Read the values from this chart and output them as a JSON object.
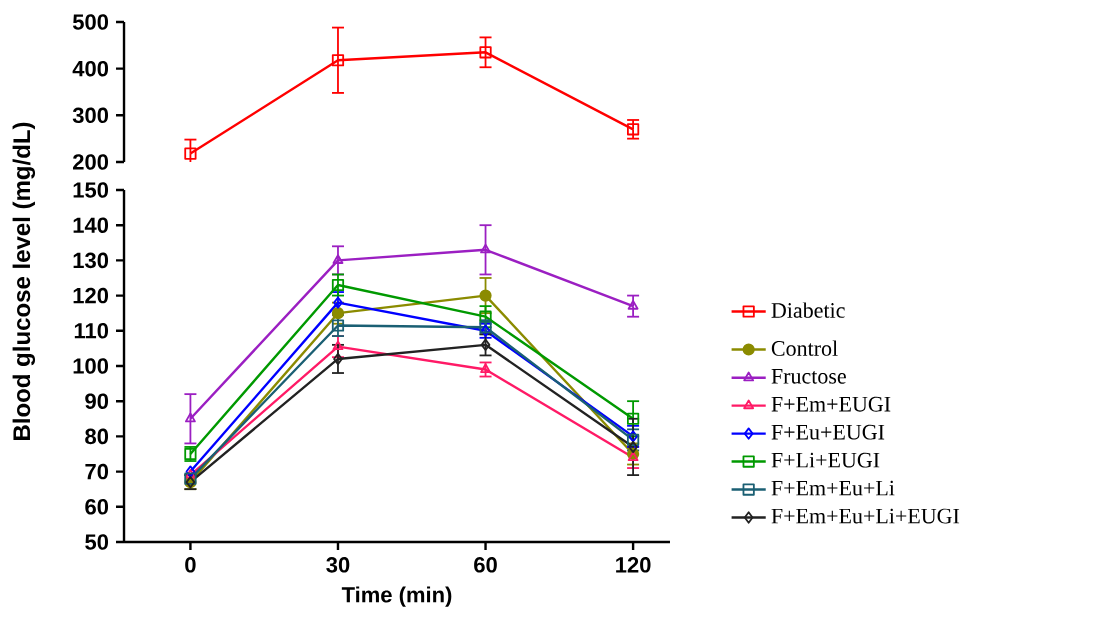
{
  "chart_data": [
    {
      "type": "line",
      "categories": [
        "0",
        "30",
        "60",
        "120"
      ],
      "ylim": [
        200,
        500
      ],
      "yticks": [
        200,
        300,
        400,
        500
      ],
      "tick_labels": "y",
      "legend": "right",
      "series": [
        {
          "name": "Diabetic",
          "color": "#ff0000",
          "marker": "square",
          "values": [
            218,
            418,
            435,
            270
          ],
          "errors": [
            30,
            70,
            32,
            20
          ]
        }
      ]
    },
    {
      "type": "line",
      "categories": [
        "0",
        "30",
        "60",
        "120"
      ],
      "xlabel": "Time (min)",
      "ylabel": "Blood glucose level (mg/dL)",
      "ylim": [
        50,
        150
      ],
      "yticks": [
        50,
        60,
        70,
        80,
        90,
        100,
        110,
        120,
        130,
        140,
        150
      ],
      "legend": "right",
      "series": [
        {
          "name": "Control",
          "color": "#8b8b00",
          "marker": "circle",
          "values": [
            67,
            115,
            120,
            75
          ],
          "errors": [
            2,
            3,
            5,
            3
          ]
        },
        {
          "name": "Fructose",
          "color": "#9b1fc2",
          "marker": "triangle",
          "values": [
            85,
            130,
            133,
            117
          ],
          "errors": [
            7,
            4,
            7,
            3
          ]
        },
        {
          "name": "F+Em+EUGI",
          "color": "#ff1a66",
          "marker": "triangle",
          "values": [
            69,
            105.5,
            99,
            74
          ],
          "errors": [
            null,
            3,
            2,
            3
          ]
        },
        {
          "name": "F+Eu+EUGI",
          "color": "#0000ff",
          "marker": "diamond",
          "values": [
            70,
            118,
            110,
            80
          ],
          "errors": [
            null,
            3,
            2,
            3
          ]
        },
        {
          "name": "F+Li+EUGI",
          "color": "#009900",
          "marker": "square",
          "values": [
            75,
            123,
            114,
            85
          ],
          "errors": [
            2,
            3,
            3,
            5
          ]
        },
        {
          "name": "F+Em+Eu+Li",
          "color": "#1a5f73",
          "marker": "square",
          "values": [
            68,
            111.5,
            111,
            79
          ],
          "errors": [
            null,
            3,
            2,
            3
          ]
        },
        {
          "name": "F+Em+Eu+Li+EUGI",
          "color": "#222222",
          "marker": "diamond",
          "values": [
            67,
            102,
            106,
            77
          ],
          "errors": [
            2,
            4,
            3,
            8
          ]
        }
      ]
    }
  ]
}
